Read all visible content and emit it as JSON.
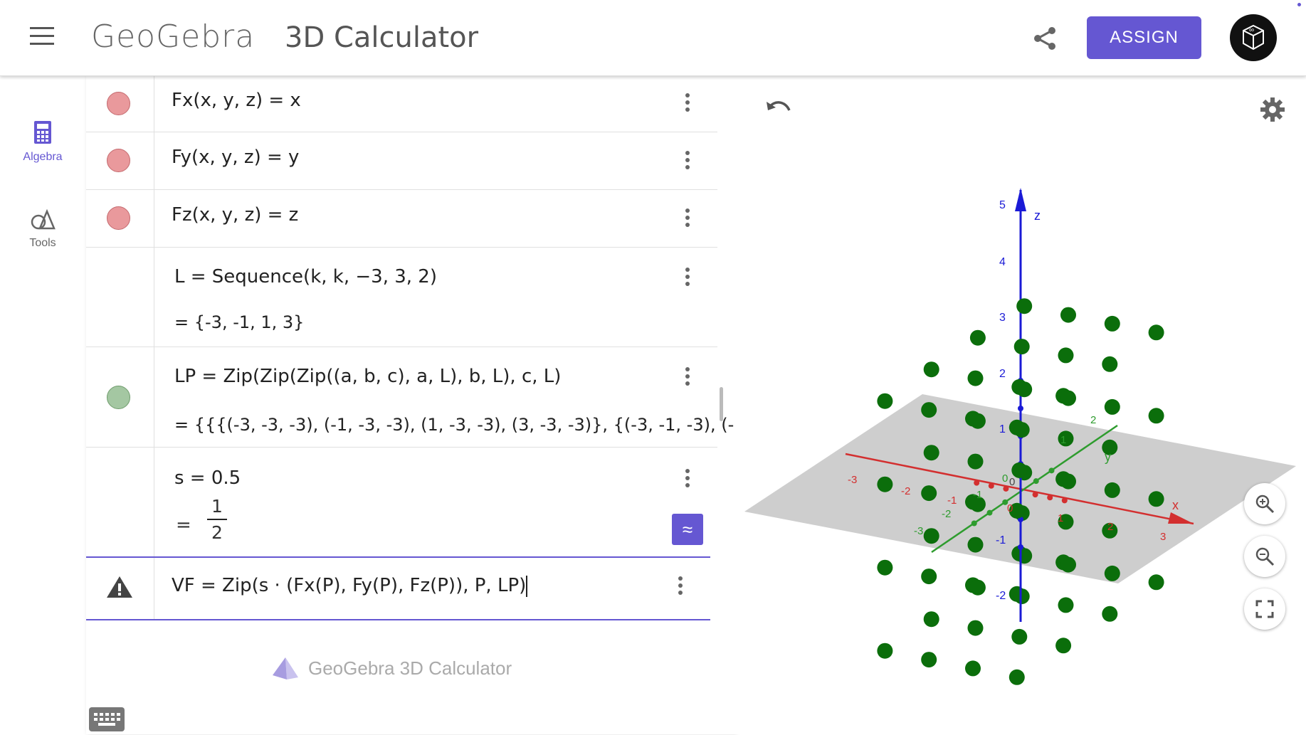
{
  "header": {
    "logo_text": "GeoGebra",
    "app_title": "3D Calculator",
    "assign_label": "ASSIGN"
  },
  "sidenav": {
    "items": [
      {
        "label": "Algebra",
        "icon": "calculator-icon",
        "active": true
      },
      {
        "label": "Tools",
        "icon": "tools-icon",
        "active": false
      }
    ]
  },
  "algebra": {
    "rows": [
      {
        "name": "Fx",
        "formula": "Fx(x, y, z)  =  x",
        "marble": "red"
      },
      {
        "name": "Fy",
        "formula": "Fy(x, y, z)  =  y",
        "marble": "red"
      },
      {
        "name": "Fz",
        "formula": "Fz(x, y, z)  =  z",
        "marble": "red"
      },
      {
        "name": "L",
        "formula": "L  =  Sequence(k, k, −3, 3, 2)",
        "result": "=  {-3, -1, 1, 3}"
      },
      {
        "name": "LP",
        "formula": "LP  =  Zip(Zip(Zip((a,  b,  c), a, L), b, L), c, L)",
        "result": "=  {{{(-3, -3, -3), (-1, -3, -3), (1, -3, -3), (3, -3, -3)}, {(-3, -1, -3), (-",
        "marble": "green"
      },
      {
        "name": "s",
        "formula": "s  =  0.5",
        "result_prefix": "=",
        "numerator": "1",
        "denominator": "2"
      }
    ],
    "approx_symbol": "≈",
    "input": {
      "formula": "VF  =  Zip(s · (Fx(P), Fy(P), Fz(P)), P, LP)"
    },
    "footer_brand": "GeoGebra 3D Calculator"
  },
  "view3d": {
    "axis_labels": {
      "x": "x",
      "y": "y",
      "z": "z"
    },
    "z_ticks": [
      "5",
      "4",
      "3",
      "2",
      "1",
      "-1",
      "-2"
    ],
    "x_ticks": [
      "-3",
      "-2",
      "-1",
      "0",
      "1",
      "2",
      "3"
    ],
    "y_ticks": [
      "-3",
      "-2",
      "-1",
      "0",
      "1",
      "2"
    ],
    "origin_label": "0",
    "colors": {
      "x_axis": "#d32f2f",
      "y_axis": "#2e9c2e",
      "z_axis": "#1a1ad6",
      "points": "#0b6e0b",
      "plane": "#bdbdbd",
      "accent": "#6557d2"
    }
  }
}
